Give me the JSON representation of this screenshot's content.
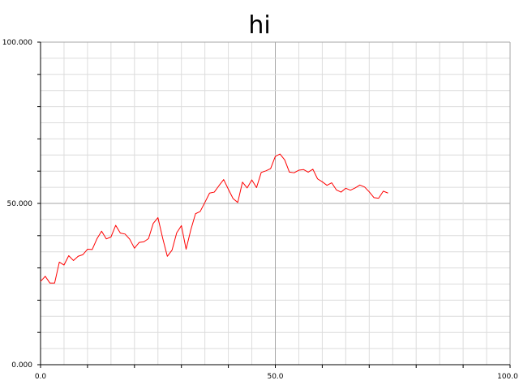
{
  "chart_data": {
    "type": "line",
    "title": "hi",
    "xlabel": "",
    "ylabel": "",
    "xlim": [
      0,
      100
    ],
    "ylim": [
      0,
      100
    ],
    "grid": true,
    "x_ticks": [
      "0.0",
      "50.0",
      "100.0"
    ],
    "y_ticks": [
      "0.000",
      "50.000",
      "100.000"
    ],
    "series": [
      {
        "color": "#ff0000",
        "x": [
          0,
          1,
          2,
          3,
          4,
          5,
          6,
          7,
          8,
          9,
          10,
          11,
          12,
          13,
          14,
          15,
          16,
          17,
          18,
          19,
          20,
          21,
          22,
          23,
          24,
          25,
          26,
          27,
          28,
          29,
          30,
          31,
          32,
          33,
          34,
          35,
          36,
          37,
          38,
          39,
          40,
          41,
          42,
          43,
          44,
          45,
          46,
          47,
          48,
          49,
          50,
          51,
          52,
          53,
          54,
          55,
          56,
          57,
          58,
          59,
          60,
          61,
          62,
          63,
          64,
          65,
          66,
          67,
          68,
          69,
          70,
          71,
          72,
          73,
          74
        ],
        "y": [
          25.8,
          27.4,
          25.3,
          25.3,
          31.8,
          30.9,
          33.8,
          32.3,
          33.6,
          34.1,
          35.8,
          35.7,
          39.0,
          41.4,
          39.0,
          39.6,
          43.2,
          40.8,
          40.5,
          38.9,
          36.1,
          37.9,
          38.1,
          39.1,
          43.8,
          45.6,
          39.3,
          33.6,
          35.5,
          40.9,
          43.1,
          35.8,
          41.8,
          46.8,
          47.5,
          50.3,
          53.2,
          53.5,
          55.5,
          57.4,
          54.4,
          51.5,
          50.3,
          56.6,
          54.8,
          57.3,
          54.9,
          59.6,
          60.1,
          60.8,
          64.6,
          65.3,
          63.5,
          59.7,
          59.5,
          60.3,
          60.5,
          59.7,
          60.6,
          57.6,
          56.7,
          55.6,
          56.4,
          54.2,
          53.5,
          54.7,
          54.1,
          54.8,
          55.7,
          55.1,
          53.6,
          51.8,
          51.6,
          53.8,
          53.2
        ]
      }
    ]
  }
}
